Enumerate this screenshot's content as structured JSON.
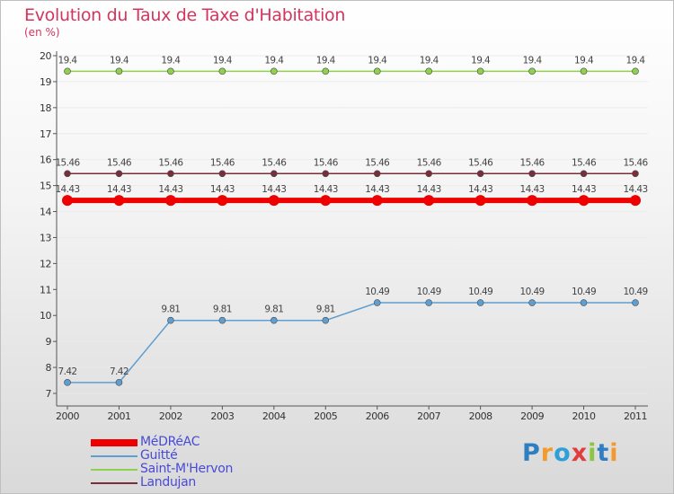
{
  "title": "Evolution du Taux de Taxe d'Habitation",
  "unit": "(en %)",
  "logo_text": "Proxiti",
  "chart_data": {
    "type": "line",
    "title": "Evolution du Taux de Taxe d'Habitation",
    "ylabel": "(en %)",
    "x": [
      "2000",
      "2001",
      "2002",
      "2003",
      "2004",
      "2005",
      "2006",
      "2007",
      "2008",
      "2009",
      "2010",
      "2011"
    ],
    "ylim": [
      7,
      20
    ],
    "yticks": [
      7,
      8,
      9,
      10,
      11,
      12,
      13,
      14,
      15,
      16,
      17,
      18,
      19,
      20
    ],
    "series": [
      {
        "name": "Saint-M'Hervon",
        "color": "#8fd14f",
        "values": [
          19.4,
          19.4,
          19.4,
          19.4,
          19.4,
          19.4,
          19.4,
          19.4,
          19.4,
          19.4,
          19.4,
          19.4
        ],
        "labels": [
          "19.4",
          "19.4",
          "19.4",
          "19.4",
          "19.4",
          "19.4",
          "19.4",
          "19.4",
          "19.4",
          "19.4",
          "19.4",
          "19.4"
        ]
      },
      {
        "name": "Landujan",
        "color": "#7a2e3a",
        "values": [
          15.46,
          15.46,
          15.46,
          15.46,
          15.46,
          15.46,
          15.46,
          15.46,
          15.46,
          15.46,
          15.46,
          15.46
        ],
        "labels": [
          "15.46",
          "15.46",
          "15.46",
          "15.46",
          "15.46",
          "15.46",
          "15.46",
          "15.46",
          "15.46",
          "15.46",
          "15.46",
          "15.46"
        ]
      },
      {
        "name": "MéDRéAC",
        "color": "#ee0000",
        "values": [
          14.43,
          14.43,
          14.43,
          14.43,
          14.43,
          14.43,
          14.43,
          14.43,
          14.43,
          14.43,
          14.43,
          14.43
        ],
        "labels": [
          "14.43",
          "14.43",
          "14.43",
          "14.43",
          "14.43",
          "14.43",
          "14.43",
          "14.43",
          "14.43",
          "14.43",
          "14.43",
          "14.43"
        ]
      },
      {
        "name": "Guitté",
        "color": "#5f9ed1",
        "values": [
          7.42,
          7.42,
          9.81,
          9.81,
          9.81,
          9.81,
          10.49,
          10.49,
          10.49,
          10.49,
          10.49,
          10.49
        ],
        "labels": [
          "7.42",
          "7.42",
          "9.81",
          "9.81",
          "9.81",
          "9.81",
          "10.49",
          "10.49",
          "10.49",
          "10.49",
          "10.49",
          "10.49"
        ]
      }
    ],
    "legend": [
      "MéDRéAC",
      "Guitté",
      "Saint-M'Hervon",
      "Landujan"
    ],
    "legend_position": "bottom-left"
  }
}
